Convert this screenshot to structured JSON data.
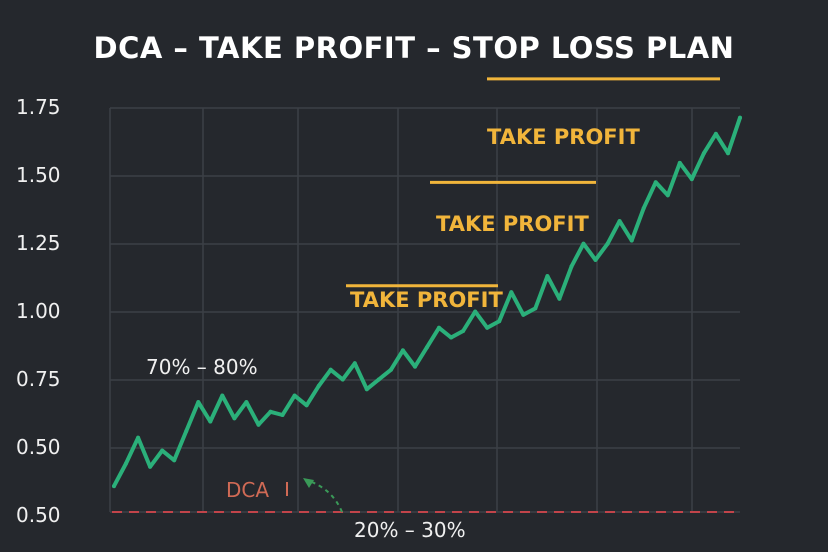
{
  "chart_data": {
    "type": "line",
    "title": "DCA – TAKE PROFIT – STOP LOSS PLAN",
    "y_tick_labels": [
      "1.75",
      "1.50",
      "1.25",
      "1.00",
      "0.75",
      "0.50",
      "0.50"
    ],
    "ylim": [
      0.5,
      1.75
    ],
    "grid": true,
    "colors": {
      "line": "#2bb07a",
      "take_profit": "#f1b53b",
      "stop_loss": "#c2444a",
      "grid": "#3c4046",
      "background": "#25282d"
    },
    "series": [
      {
        "values": [
          0.58,
          0.65,
          0.73,
          0.64,
          0.69,
          0.66,
          0.75,
          0.84,
          0.78,
          0.86,
          0.79,
          0.84,
          0.77,
          0.81,
          0.8,
          0.86,
          0.83,
          0.89,
          0.94,
          0.91,
          0.96,
          0.88,
          0.91,
          0.94,
          1.0,
          0.95,
          1.01,
          1.07,
          1.04,
          1.06,
          1.12,
          1.07,
          1.09,
          1.18,
          1.11,
          1.13,
          1.23,
          1.16,
          1.26,
          1.33,
          1.28,
          1.33,
          1.4,
          1.34,
          1.44,
          1.52,
          1.48,
          1.58,
          1.53,
          1.61,
          1.67,
          1.61,
          1.72
        ]
      }
    ],
    "stop_loss_level": 0.5,
    "take_profit": [
      {
        "label": "TAKE PROFIT",
        "level": 1.84
      },
      {
        "label": "TAKE PROFIT",
        "level": 1.52
      },
      {
        "label": "TAKE PROFIT",
        "level": 1.2
      }
    ],
    "annotations": {
      "allocation_upper": "70% – 80%",
      "allocation_lower": "20% – 30%",
      "dca": "DCA"
    }
  }
}
